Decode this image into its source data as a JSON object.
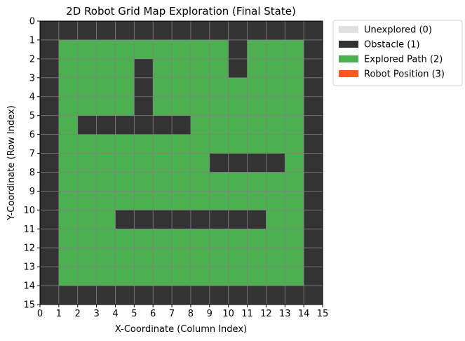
{
  "chart_data": {
    "type": "heatmap",
    "title": "2D Robot Grid Map Exploration (Final State)",
    "xlabel": "X-Coordinate (Column Index)",
    "ylabel": "Y-Coordinate (Row Index)",
    "xlim": [
      0,
      15
    ],
    "ylim": [
      15,
      0
    ],
    "x_ticks": [
      "0",
      "1",
      "2",
      "3",
      "4",
      "5",
      "6",
      "7",
      "8",
      "9",
      "10",
      "11",
      "12",
      "13",
      "14",
      "15"
    ],
    "y_ticks": [
      "0",
      "1",
      "2",
      "3",
      "4",
      "5",
      "6",
      "7",
      "8",
      "9",
      "10",
      "11",
      "12",
      "13",
      "14",
      "15"
    ],
    "grid": true,
    "grid_color": "#808080",
    "legend_placement": "outside-top-right",
    "legend": [
      {
        "label": "Unexplored (0)",
        "value": 0,
        "color": "#e0e0e0"
      },
      {
        "label": "Obstacle (1)",
        "value": 1,
        "color": "#333333"
      },
      {
        "label": "Explored Path (2)",
        "value": 2,
        "color": "#4caf50"
      },
      {
        "label": "Robot Position (3)",
        "value": 3,
        "color": "#ff5722"
      }
    ],
    "grid_values": [
      [
        1,
        1,
        1,
        1,
        1,
        1,
        1,
        1,
        1,
        1,
        1,
        1,
        1,
        1,
        1
      ],
      [
        1,
        2,
        2,
        2,
        2,
        2,
        2,
        2,
        2,
        2,
        1,
        2,
        2,
        2,
        1
      ],
      [
        1,
        2,
        2,
        2,
        2,
        1,
        2,
        2,
        2,
        2,
        1,
        2,
        2,
        2,
        1
      ],
      [
        1,
        2,
        2,
        2,
        2,
        1,
        2,
        2,
        2,
        2,
        2,
        2,
        2,
        2,
        1
      ],
      [
        1,
        2,
        2,
        2,
        2,
        1,
        2,
        2,
        2,
        2,
        2,
        2,
        2,
        2,
        1
      ],
      [
        1,
        2,
        1,
        1,
        1,
        1,
        1,
        1,
        2,
        2,
        2,
        2,
        2,
        2,
        1
      ],
      [
        1,
        2,
        2,
        2,
        2,
        2,
        2,
        2,
        2,
        2,
        2,
        2,
        2,
        2,
        1
      ],
      [
        1,
        2,
        2,
        2,
        2,
        2,
        2,
        2,
        2,
        1,
        1,
        1,
        1,
        2,
        1
      ],
      [
        1,
        2,
        2,
        2,
        2,
        2,
        2,
        2,
        2,
        2,
        2,
        2,
        2,
        2,
        1
      ],
      [
        1,
        2,
        2,
        2,
        2,
        2,
        2,
        2,
        2,
        2,
        2,
        2,
        2,
        2,
        1
      ],
      [
        1,
        2,
        2,
        2,
        1,
        1,
        1,
        1,
        1,
        1,
        1,
        1,
        2,
        2,
        1
      ],
      [
        1,
        2,
        2,
        2,
        2,
        2,
        2,
        2,
        2,
        2,
        2,
        2,
        2,
        2,
        1
      ],
      [
        1,
        2,
        2,
        2,
        2,
        2,
        2,
        2,
        2,
        2,
        2,
        2,
        2,
        2,
        1
      ],
      [
        1,
        2,
        2,
        2,
        2,
        2,
        2,
        2,
        2,
        2,
        2,
        2,
        2,
        2,
        1
      ],
      [
        1,
        1,
        1,
        1,
        1,
        1,
        1,
        1,
        1,
        1,
        1,
        1,
        1,
        1,
        1
      ]
    ]
  }
}
